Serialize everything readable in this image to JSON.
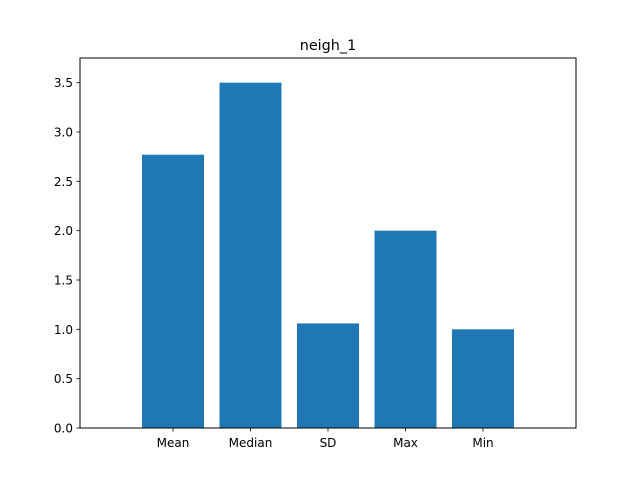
{
  "chart_data": {
    "type": "bar",
    "title": "neigh_1",
    "xlabel": "",
    "ylabel": "",
    "categories": [
      "Mean",
      "Median",
      "SD",
      "Max",
      "Min"
    ],
    "values": [
      2.77,
      3.5,
      1.06,
      2.0,
      1.0
    ],
    "ylim": [
      0,
      3.75
    ],
    "yticks": [
      "0.0",
      "0.5",
      "1.0",
      "1.5",
      "2.0",
      "2.5",
      "3.0",
      "3.5"
    ],
    "bar_color": "#1f77b4",
    "grid": false,
    "legend": "none"
  }
}
